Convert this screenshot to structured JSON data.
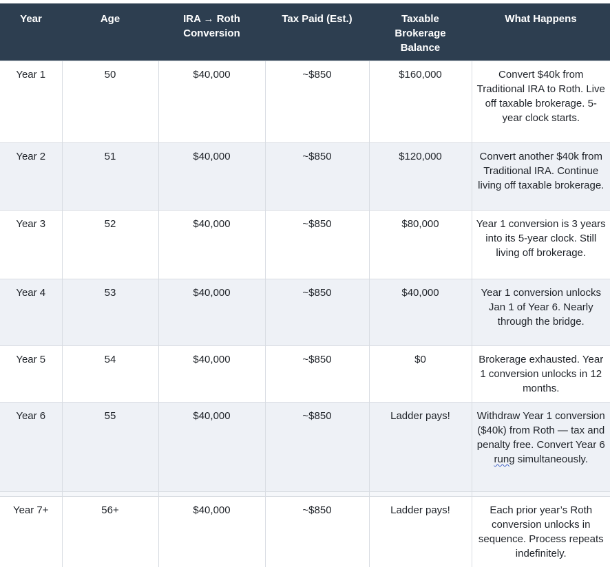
{
  "colors": {
    "header_background": "#2d3e50",
    "header_text": "#ffffff",
    "stripe_row_background": "#eef1f6",
    "body_text": "#1f2329",
    "cell_border": "#d8dce2",
    "spellcheck_underline": "#4668c9"
  },
  "table": {
    "headers": [
      "Year",
      "Age",
      "IRA → Roth Conversion",
      "Tax Paid (Est.)",
      "Taxable Brokerage Balance",
      "What Happens"
    ],
    "rows": [
      {
        "year": "Year 1",
        "age": "50",
        "conversion": "$40,000",
        "tax_paid": "~$850",
        "brokerage": "$160,000",
        "what_happens": "Convert $40k from Traditional IRA to Roth. Live off taxable brokerage. 5-year clock starts."
      },
      {
        "year": "Year 2",
        "age": "51",
        "conversion": "$40,000",
        "tax_paid": "~$850",
        "brokerage": "$120,000",
        "what_happens": "Convert another $40k from Traditional IRA. Continue living off taxable brokerage."
      },
      {
        "year": "Year 3",
        "age": "52",
        "conversion": "$40,000",
        "tax_paid": "~$850",
        "brokerage": "$80,000",
        "what_happens": "Year 1 conversion is 3 years into its 5-year clock. Still living off brokerage."
      },
      {
        "year": "Year 4",
        "age": "53",
        "conversion": "$40,000",
        "tax_paid": "~$850",
        "brokerage": "$40,000",
        "what_happens": "Year 1 conversion unlocks Jan 1 of Year 6. Nearly through the bridge."
      },
      {
        "year": "Year 5",
        "age": "54",
        "conversion": "$40,000",
        "tax_paid": "~$850",
        "brokerage": "$0",
        "what_happens": "Brokerage exhausted. Year 1 conversion unlocks in 12 months."
      },
      {
        "year": "Year 6",
        "age": "55",
        "conversion": "$40,000",
        "tax_paid": "~$850",
        "brokerage": "Ladder pays!",
        "what_happens_parts": {
          "before": "Withdraw Year 1 conversion ($40k) from Roth — tax and penalty free. Convert Year 6 ",
          "highlight": "rung",
          "after": " simultaneously."
        }
      },
      {
        "year": "Year 7+",
        "age": "56+",
        "conversion": "$40,000",
        "tax_paid": "~$850",
        "brokerage": "Ladder pays!",
        "what_happens": "Each prior year’s Roth conversion unlocks in sequence. Process repeats indefinitely."
      }
    ]
  }
}
